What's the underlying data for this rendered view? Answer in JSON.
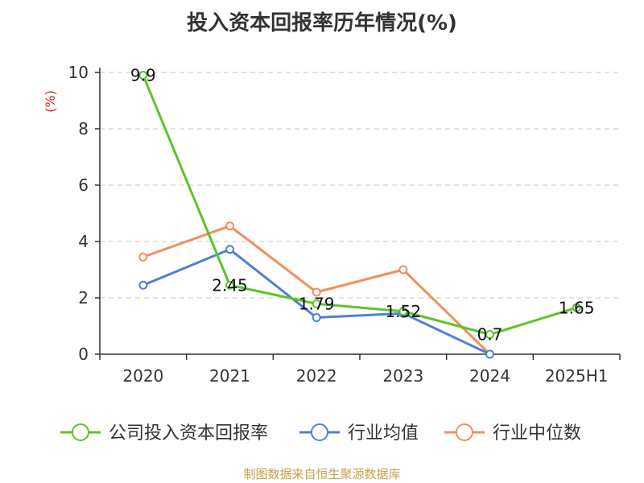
{
  "title": "投入资本回报率历年情况(%)",
  "source_note": "制图数据来自恒生聚源数据库",
  "chart_data": {
    "type": "line",
    "title": "投入资本回报率历年情况(%)",
    "ylabel": "(%)",
    "xlabel": "",
    "categories": [
      "2020",
      "2021",
      "2022",
      "2023",
      "2024",
      "2025H1"
    ],
    "ylim": [
      0,
      10
    ],
    "yticks": [
      0,
      2,
      4,
      6,
      8,
      10
    ],
    "grid": true,
    "legend_position": "bottom",
    "series": [
      {
        "name": "公司投入资本回报率",
        "color": "#5bc42a",
        "values": [
          9.9,
          2.45,
          1.79,
          1.52,
          0.7,
          1.65
        ],
        "labels": [
          "9.9",
          "2.45",
          "1.79",
          "1.52",
          "0.7",
          "1.65"
        ]
      },
      {
        "name": "行业均值",
        "color": "#4f7fdb",
        "values": [
          2.45,
          3.72,
          1.3,
          1.45,
          0.0,
          null
        ]
      },
      {
        "name": "行业中位数",
        "color": "#f58d5c",
        "values": [
          3.45,
          4.55,
          2.2,
          3.0,
          0.0,
          null
        ]
      }
    ]
  }
}
